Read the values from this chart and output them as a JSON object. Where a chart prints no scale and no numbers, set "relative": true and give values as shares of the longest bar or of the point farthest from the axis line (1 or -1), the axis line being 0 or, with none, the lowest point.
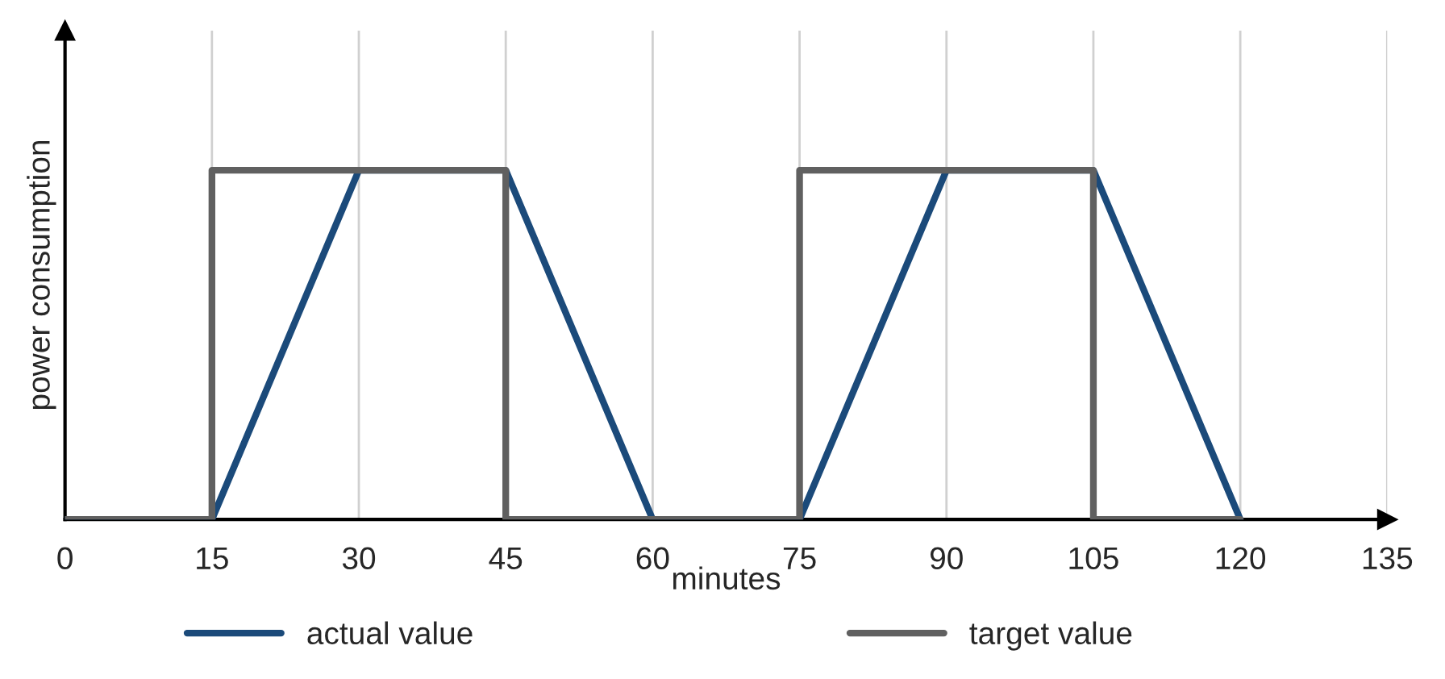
{
  "chart_data": {
    "type": "line",
    "relative": true,
    "xlabel": "minutes",
    "ylabel": "power consumption",
    "xlim": [
      0,
      135
    ],
    "xticks": [
      0,
      15,
      30,
      45,
      60,
      75,
      90,
      105,
      120,
      135
    ],
    "grid": "x",
    "legend": "bottom",
    "line_style": "solid",
    "marker": "none",
    "series": [
      {
        "name": "actual value",
        "color": "#1b4a7a",
        "x": [
          0,
          15,
          30,
          45,
          60,
          75,
          90,
          105,
          120
        ],
        "values": [
          0,
          0,
          1,
          1,
          0,
          0,
          1,
          1,
          0
        ]
      },
      {
        "name": "target value",
        "color": "#606060",
        "x": [
          0,
          15,
          15,
          45,
          45,
          75,
          75,
          105,
          105,
          120
        ],
        "values": [
          0,
          0,
          1,
          1,
          0,
          0,
          1,
          1,
          0,
          0
        ]
      }
    ]
  }
}
